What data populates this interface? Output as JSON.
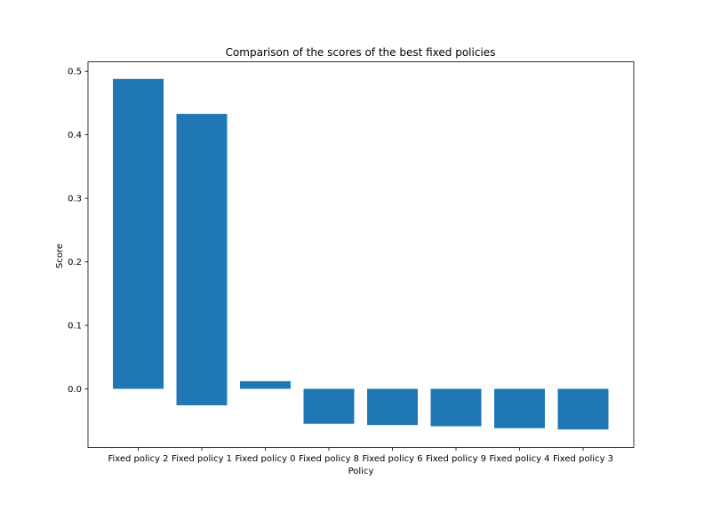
{
  "chart_data": {
    "type": "bar",
    "title": "Comparison of the scores of the best fixed policies",
    "xlabel": "Policy",
    "ylabel": "Score",
    "ylim": [
      -0.0925,
      0.515
    ],
    "yticks": [
      0.0,
      0.1,
      0.2,
      0.3,
      0.4,
      0.5
    ],
    "ytick_labels": [
      "0.0",
      "0.1",
      "0.2",
      "0.3",
      "0.4",
      "0.5"
    ],
    "grid": false,
    "bar_color": "#1f77b4",
    "categories": [
      "Fixed policy 2",
      "Fixed policy 1",
      "Fixed policy 0",
      "Fixed policy 8",
      "Fixed policy 6",
      "Fixed policy 9",
      "Fixed policy 4",
      "Fixed policy 3"
    ],
    "bars": [
      {
        "top": 0.488,
        "bottom": 0.0
      },
      {
        "top": 0.433,
        "bottom": -0.026
      },
      {
        "top": 0.012,
        "bottom": 0.0
      },
      {
        "top": 0.0,
        "bottom": -0.055
      },
      {
        "top": 0.0,
        "bottom": -0.057
      },
      {
        "top": 0.0,
        "bottom": -0.059
      },
      {
        "top": 0.0,
        "bottom": -0.062
      },
      {
        "top": 0.0,
        "bottom": -0.064
      }
    ]
  }
}
